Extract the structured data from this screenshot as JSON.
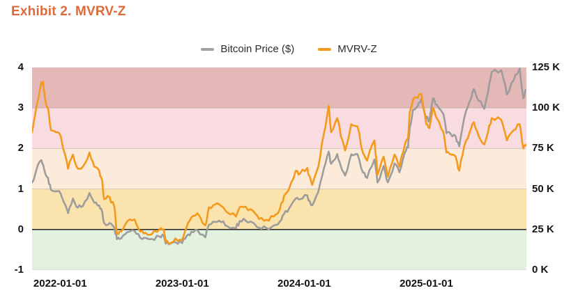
{
  "title": "Exhibit 2. MVRV-Z",
  "title_color": "#DD6A38",
  "legend": [
    {
      "label": "Bitcoin Price ($)",
      "color": "#A2A2A2"
    },
    {
      "label": "MVRV-Z",
      "color": "#F5991C"
    }
  ],
  "chart_data": {
    "type": "line",
    "title": "Exhibit 2. MVRV-Z",
    "x_ticks": [
      "2022-01-01",
      "2023-01-01",
      "2024-01-01",
      "2025-01-01"
    ],
    "x_tick_positions": [
      2022.0,
      2023.0,
      2024.0,
      2025.0
    ],
    "x_range": [
      2021.77,
      2025.82
    ],
    "grid": "horizontal-only",
    "legend_position": "top-center",
    "left_axis": {
      "title": "MVRV-Z",
      "label_values": [
        4,
        3,
        2,
        1,
        0,
        -1
      ],
      "range": [
        -1,
        4
      ]
    },
    "right_axis": {
      "title": "Bitcoin Price",
      "labels": [
        "125 K",
        "100 K",
        "75 K",
        "50 K",
        "25 K",
        "0 K"
      ],
      "label_values_k": [
        125,
        100,
        75,
        50,
        25,
        0
      ],
      "range_k": [
        0,
        125
      ],
      "k_per_unit": 25
    },
    "bands": [
      {
        "from": 3,
        "to": 4,
        "color": "#E4B8B7"
      },
      {
        "from": 2,
        "to": 3,
        "color": "#F9DCE0"
      },
      {
        "from": 1,
        "to": 2,
        "color": "#FCEBDA"
      },
      {
        "from": 0,
        "to": 1,
        "color": "#FBE3AE"
      },
      {
        "from": -1,
        "to": 0,
        "color": "#E3F2DF"
      }
    ],
    "gridlines": {
      "light_values": [
        3,
        2,
        1,
        -1
      ],
      "light_color": "rgba(80,80,80,0.22)",
      "zero_value": 0,
      "zero_color": "#2E2E2E"
    },
    "x": [
      2021.77,
      2021.81,
      2021.84,
      2021.86,
      2021.875,
      2021.9,
      2021.925,
      2021.965,
      2022.005,
      2022.03,
      2022.065,
      2022.105,
      2022.145,
      2022.185,
      2022.24,
      2022.28,
      2022.32,
      2022.345,
      2022.36,
      2022.405,
      2022.445,
      2022.465,
      2022.5,
      2022.55,
      2022.61,
      2022.655,
      2022.7,
      2022.75,
      2022.815,
      2022.85,
      2022.865,
      2022.89,
      2022.945,
      2023.0,
      2023.035,
      2023.075,
      2023.125,
      2023.19,
      2023.22,
      2023.27,
      2023.32,
      2023.37,
      2023.44,
      2023.47,
      2023.52,
      2023.58,
      2023.63,
      2023.69,
      2023.75,
      2023.8,
      2023.835,
      2023.875,
      2023.93,
      2023.965,
      2024.025,
      2024.035,
      2024.065,
      2024.115,
      2024.16,
      2024.2,
      2024.22,
      2024.27,
      2024.3,
      2024.335,
      2024.385,
      2024.435,
      2024.48,
      2024.515,
      2024.575,
      2024.6,
      2024.65,
      2024.685,
      2024.74,
      2024.78,
      2024.825,
      2024.85,
      2024.865,
      2024.89,
      2024.93,
      2024.96,
      2025.0,
      2025.025,
      2025.055,
      2025.085,
      2025.14,
      2025.165,
      2025.2,
      2025.24,
      2025.27,
      2025.31,
      2025.355,
      2025.39,
      2025.43,
      2025.475,
      2025.505,
      2025.535,
      2025.615,
      2025.66,
      2025.715,
      2025.765,
      2025.795,
      2025.82
    ],
    "series": [
      {
        "name": "Bitcoin Price ($)",
        "color": "#9C9C9C",
        "axis": "right",
        "unit": "K USD",
        "values": [
          54,
          63,
          67.5,
          65,
          60.5,
          57,
          49.5,
          48.5,
          47,
          41.8,
          35.1,
          44.1,
          38.5,
          39.4,
          47.5,
          41.5,
          39.8,
          35.8,
          29.1,
          29,
          26,
          19,
          19.5,
          23.4,
          24.1,
          20,
          19.8,
          19.2,
          20.6,
          20.9,
          16.3,
          15.8,
          17.2,
          16.6,
          20.9,
          23.6,
          24.6,
          20.2,
          28.1,
          29.6,
          29.5,
          27,
          25.8,
          30.2,
          30.4,
          29.2,
          26.1,
          25.9,
          27.5,
          29.9,
          34.7,
          37.9,
          44.1,
          43.7,
          46.1,
          43,
          39.9,
          48.2,
          62.5,
          73.1,
          65.5,
          71.6,
          64,
          58.3,
          71.4,
          71.6,
          60.3,
          56.8,
          68.2,
          54,
          64.2,
          54.1,
          65.8,
          60.3,
          72.7,
          75.6,
          88,
          98.9,
          101.2,
          106.1,
          93.6,
          92.5,
          106.1,
          102.1,
          96.2,
          84.4,
          83.9,
          82.6,
          76.3,
          93.7,
          104.1,
          111.7,
          104.4,
          99.5,
          109.6,
          122.1,
          123.3,
          108.4,
          117.1,
          124.5,
          106,
          111.5
        ]
      },
      {
        "name": "MVRV-Z",
        "color": "#F5991C",
        "axis": "left",
        "unit": "z-score",
        "values": [
          2.4,
          3.1,
          3.55,
          3.65,
          3.25,
          3.0,
          2.45,
          2.4,
          2.3,
          1.95,
          1.5,
          1.85,
          1.5,
          1.55,
          1.9,
          1.55,
          1.45,
          1.2,
          0.75,
          0.8,
          0.55,
          -0.1,
          -0.05,
          0.2,
          0.25,
          -0.05,
          -0.08,
          -0.12,
          0.0,
          0.0,
          -0.3,
          -0.35,
          -0.22,
          -0.26,
          0.05,
          0.3,
          0.4,
          0.1,
          0.55,
          0.62,
          0.58,
          0.42,
          0.32,
          0.55,
          0.56,
          0.46,
          0.26,
          0.24,
          0.32,
          0.5,
          0.83,
          1.0,
          1.45,
          1.38,
          1.52,
          1.35,
          1.1,
          1.55,
          2.35,
          3.05,
          2.4,
          2.75,
          2.3,
          1.95,
          2.6,
          2.55,
          1.9,
          1.7,
          2.2,
          1.35,
          1.8,
          1.3,
          1.85,
          1.55,
          2.1,
          2.25,
          2.9,
          3.2,
          3.25,
          3.35,
          2.6,
          2.5,
          3.0,
          2.75,
          2.4,
          1.9,
          1.85,
          1.8,
          1.45,
          2.05,
          2.4,
          2.65,
          2.3,
          2.1,
          2.4,
          2.75,
          2.7,
          2.2,
          2.45,
          2.6,
          2.0,
          2.1
        ]
      }
    ]
  }
}
